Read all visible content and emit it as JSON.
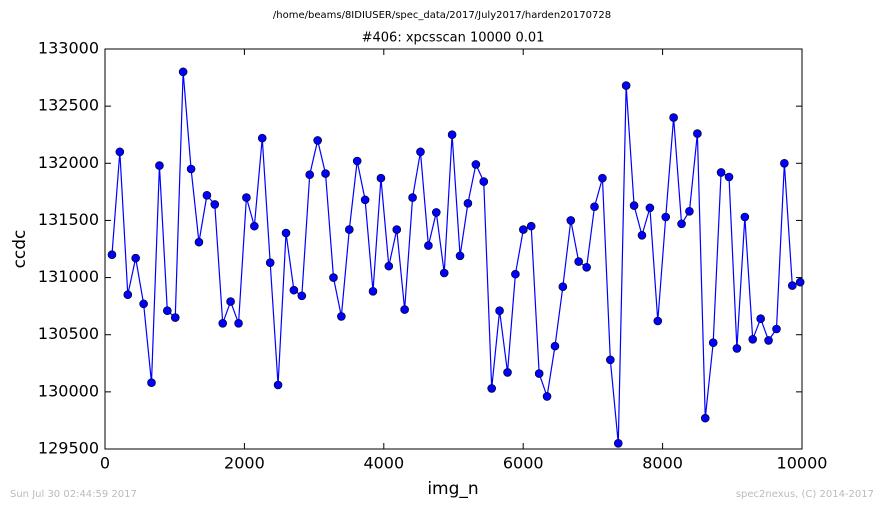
{
  "chart_data": {
    "type": "line",
    "suptitle": "/home/beams/8IDIUSER/spec_data/2017/July2017/harden20170728",
    "title": "#406: xpcsscan 10000 0.01",
    "xlabel": "img_n",
    "ylabel": "ccdc",
    "footer_left": "Sun Jul 30 02:44:59 2017",
    "footer_right": "spec2nexus, (C) 2014-2017",
    "color": "#0000ff",
    "marker": "circle",
    "xlim": [
      0,
      10000
    ],
    "xticks": [
      0,
      2000,
      4000,
      6000,
      8000,
      10000
    ],
    "ylim": [
      129500,
      133000
    ],
    "yticks": [
      129500,
      130000,
      130500,
      131000,
      131500,
      132000,
      132500,
      133000
    ],
    "grid": false,
    "x": [
      100,
      213,
      327,
      440,
      554,
      667,
      781,
      894,
      1008,
      1121,
      1235,
      1348,
      1462,
      1575,
      1689,
      1802,
      1916,
      2029,
      2143,
      2256,
      2370,
      2483,
      2597,
      2710,
      2824,
      2937,
      3051,
      3164,
      3278,
      3391,
      3505,
      3618,
      3732,
      3845,
      3959,
      4072,
      4186,
      4299,
      4413,
      4526,
      4640,
      4753,
      4867,
      4980,
      5094,
      5207,
      5321,
      5434,
      5548,
      5661,
      5775,
      5888,
      6002,
      6115,
      6229,
      6342,
      6456,
      6569,
      6683,
      6796,
      6910,
      7023,
      7137,
      7250,
      7364,
      7477,
      7591,
      7704,
      7818,
      7931,
      8045,
      8158,
      8272,
      8385,
      8499,
      8612,
      8726,
      8839,
      8953,
      9066,
      9180,
      9293,
      9407,
      9520,
      9634,
      9747,
      9861,
      9974
    ],
    "values": [
      131200,
      132100,
      130850,
      131170,
      130770,
      130080,
      131980,
      130710,
      130650,
      132800,
      131950,
      131310,
      131720,
      131640,
      130600,
      130790,
      130600,
      131700,
      131450,
      132220,
      131130,
      130060,
      131390,
      130890,
      130840,
      131900,
      132200,
      131910,
      131000,
      130660,
      131420,
      132020,
      131680,
      130880,
      131870,
      131100,
      131420,
      130720,
      131700,
      132100,
      131280,
      131570,
      131040,
      132250,
      131190,
      131650,
      131990,
      131840,
      130030,
      130710,
      130170,
      131030,
      131420,
      131450,
      130160,
      129960,
      130400,
      130920,
      131500,
      131140,
      131090,
      131620,
      131870,
      130280,
      129550,
      132680,
      131630,
      131370,
      131610,
      130620,
      131530,
      132400,
      131470,
      131580,
      132260,
      129770,
      130430,
      131920,
      131880,
      130380,
      131530,
      130460,
      130640,
      130450,
      130550,
      132000,
      130930,
      130960
    ]
  }
}
